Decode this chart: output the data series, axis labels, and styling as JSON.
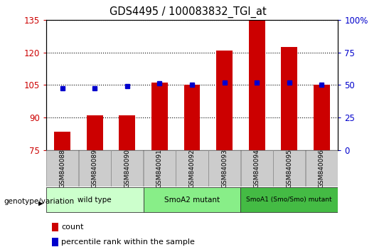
{
  "title": "GDS4495 / 100083832_TGI_at",
  "categories": [
    "GSM840088",
    "GSM840089",
    "GSM840090",
    "GSM840091",
    "GSM840092",
    "GSM840093",
    "GSM840094",
    "GSM840095",
    "GSM840096"
  ],
  "bar_values": [
    83.5,
    91.0,
    91.0,
    106.0,
    105.0,
    121.0,
    135.0,
    122.5,
    105.0
  ],
  "blue_values": [
    103.5,
    103.5,
    104.5,
    105.8,
    105.2,
    106.0,
    106.0,
    106.0,
    105.2
  ],
  "bar_color": "#cc0000",
  "blue_color": "#0000cc",
  "ylim_left": [
    75,
    135
  ],
  "yticks_left": [
    75,
    90,
    105,
    120,
    135
  ],
  "ylim_right": [
    0,
    100
  ],
  "yticks_right": [
    0,
    25,
    50,
    75,
    100
  ],
  "left_axis_color": "#cc0000",
  "right_axis_color": "#0000cc",
  "groups": [
    {
      "label": "wild type",
      "start": 0,
      "end": 3,
      "color": "#ccffcc"
    },
    {
      "label": "SmoA2 mutant",
      "start": 3,
      "end": 6,
      "color": "#88ee88"
    },
    {
      "label": "SmoA1 (Smo/Smo) mutant",
      "start": 6,
      "end": 9,
      "color": "#44bb44"
    }
  ],
  "genotype_label": "genotype/variation",
  "legend_count_label": "count",
  "legend_percentile_label": "percentile rank within the sample",
  "tick_label_bg": "#cccccc"
}
